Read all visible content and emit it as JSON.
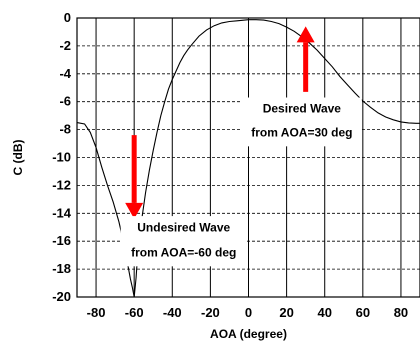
{
  "chart_data": {
    "type": "line",
    "title": "",
    "xlabel": "AOA (degree)",
    "ylabel": "C (dB)",
    "xlim": [
      -90,
      90
    ],
    "ylim": [
      -20,
      0
    ],
    "xticks": [
      -80,
      -60,
      -40,
      -20,
      0,
      20,
      40,
      60,
      80
    ],
    "xtick_labels": [
      "-80",
      "-60",
      "-40",
      "-20",
      "0",
      "20",
      "40",
      "60",
      "80"
    ],
    "yticks": [
      0,
      -2,
      -4,
      -6,
      -8,
      -10,
      -12,
      -14,
      -16,
      -18,
      -20
    ],
    "ytick_labels": [
      "0",
      "-2",
      "-4",
      "-6",
      "-8",
      "-10",
      "-12",
      "-14",
      "-16",
      "-18",
      "-20"
    ],
    "grid": true,
    "series": [
      {
        "x": [
          -90,
          -86,
          -83,
          -80,
          -77,
          -74,
          -71,
          -68,
          -66,
          -64,
          -62,
          -61,
          -60,
          -59,
          -58,
          -56,
          -54,
          -52,
          -50,
          -48,
          -46,
          -44,
          -42,
          -40,
          -38,
          -36,
          -34,
          -32,
          -30,
          -26,
          -22,
          -18,
          -14,
          -10,
          -6,
          -2,
          0,
          4,
          8,
          12,
          16,
          20,
          24,
          28,
          32,
          36,
          40,
          44,
          48,
          52,
          56,
          60,
          64,
          68,
          72,
          76,
          80,
          84,
          88,
          90
        ],
        "y": [
          -7.5,
          -7.6,
          -8.2,
          -9.3,
          -10.7,
          -12.0,
          -13.2,
          -14.6,
          -15.8,
          -17.2,
          -18.7,
          -19.3,
          -20.0,
          -18.6,
          -16.6,
          -14.4,
          -12.5,
          -10.9,
          -9.5,
          -8.2,
          -7.0,
          -6.0,
          -5.1,
          -4.4,
          -3.8,
          -3.2,
          -2.7,
          -2.3,
          -1.95,
          -1.3,
          -0.85,
          -0.55,
          -0.35,
          -0.25,
          -0.2,
          -0.15,
          -0.12,
          -0.12,
          -0.15,
          -0.25,
          -0.4,
          -0.65,
          -0.95,
          -1.35,
          -1.8,
          -2.3,
          -2.9,
          -3.5,
          -4.2,
          -4.8,
          -5.4,
          -5.95,
          -6.4,
          -6.8,
          -7.1,
          -7.3,
          -7.45,
          -7.52,
          -7.55,
          -7.55
        ]
      }
    ],
    "annotations": [
      {
        "line1": "Desired Wave",
        "line2": "from AOA=30 deg",
        "arrow_x": 30,
        "arrow_from_y": -5.3,
        "arrow_to_y": -0.6,
        "direction": "up",
        "color": "#ff0000"
      },
      {
        "line1": "Undesired Wave",
        "line2": "from AOA=-60 deg",
        "arrow_x": -60,
        "arrow_from_y": -8.4,
        "arrow_to_y": -14.4,
        "direction": "down",
        "color": "#ff0000"
      }
    ]
  }
}
